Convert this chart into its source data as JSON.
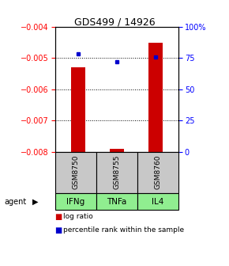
{
  "title": "GDS499 / 14926",
  "samples": [
    "GSM8750",
    "GSM8755",
    "GSM8760"
  ],
  "agents": [
    "IFNg",
    "TNFa",
    "IL4"
  ],
  "log_ratios": [
    -0.0053,
    -0.0079,
    -0.00452
  ],
  "percentile_ranks": [
    78,
    72,
    76
  ],
  "ylim_left": [
    -0.008,
    -0.004
  ],
  "ylim_right": [
    0,
    100
  ],
  "yticks_left": [
    -0.008,
    -0.007,
    -0.006,
    -0.005,
    -0.004
  ],
  "yticks_right": [
    0,
    25,
    50,
    75,
    100
  ],
  "bar_color": "#cc0000",
  "dot_color": "#0000cc",
  "bg_color": "#ffffff",
  "sample_box_color": "#c8c8c8",
  "agent_box_color": "#90ee90",
  "legend_bar_label": "log ratio",
  "legend_dot_label": "percentile rank within the sample"
}
